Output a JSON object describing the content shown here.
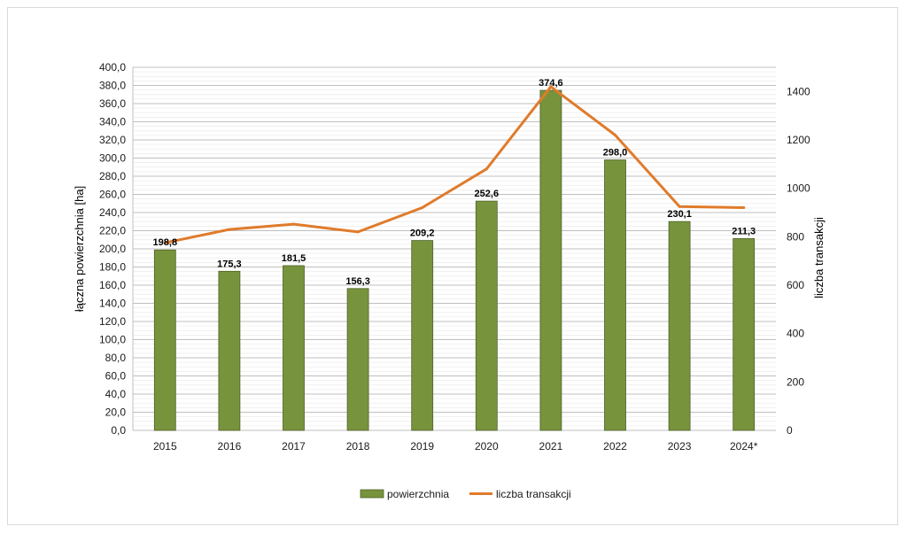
{
  "chart_data": {
    "type": "bar",
    "categories": [
      "2015",
      "2016",
      "2017",
      "2018",
      "2019",
      "2020",
      "2021",
      "2022",
      "2023",
      "2024*"
    ],
    "series": [
      {
        "name": "powierzchnia",
        "type": "bar",
        "axis": "left",
        "color": "#77933c",
        "values": [
          198.8,
          175.3,
          181.5,
          156.3,
          209.2,
          252.6,
          374.6,
          298.0,
          230.1,
          211.3
        ],
        "labels": [
          "198,8",
          "175,3",
          "181,5",
          "156,3",
          "209,2",
          "252,6",
          "374,6",
          "298,0",
          "230,1",
          "211,3"
        ]
      },
      {
        "name": "liczba transakcji",
        "type": "line",
        "axis": "right",
        "color": "#e07b2b",
        "values": [
          775,
          830,
          852,
          820,
          920,
          1080,
          1420,
          1220,
          925,
          920
        ]
      }
    ],
    "ylabel": "łączna powierzchnia [ha]",
    "ylabel_right": "liczba transakcji",
    "ylim": [
      0,
      400
    ],
    "ylim_right": [
      0,
      1500
    ],
    "yticks": [
      "0,0",
      "20,0",
      "40,0",
      "60,0",
      "80,0",
      "100,0",
      "120,0",
      "140,0",
      "160,0",
      "180,0",
      "200,0",
      "220,0",
      "240,0",
      "260,0",
      "280,0",
      "300,0",
      "320,0",
      "340,0",
      "360,0",
      "380,0",
      "400,0"
    ],
    "yticks_right": [
      "0",
      "200",
      "400",
      "600",
      "800",
      "1000",
      "1200",
      "1400"
    ],
    "grid": true,
    "legend_position": "bottom"
  }
}
